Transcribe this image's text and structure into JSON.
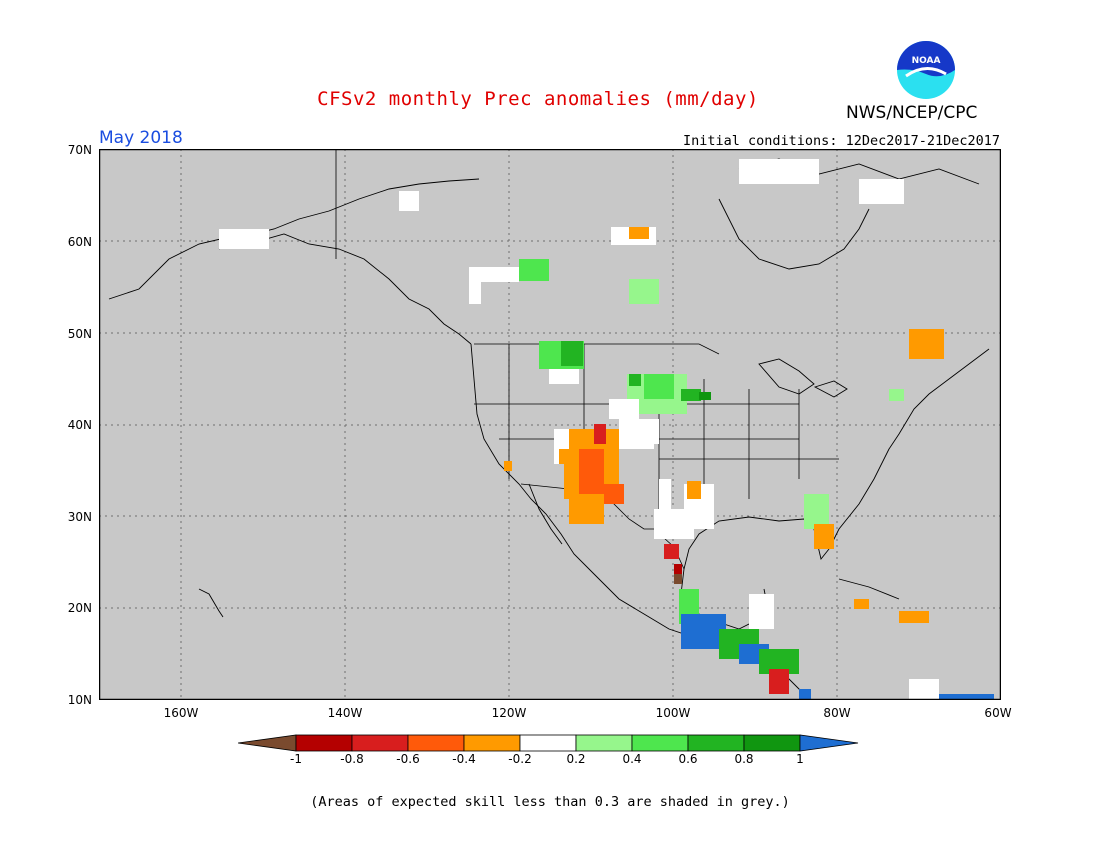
{
  "title": "CFSv2 monthly Prec anomalies (mm/day)",
  "agency": "NWS/NCEP/CPC",
  "logo_text": "NOAA",
  "target_month": "May 2018",
  "initial_conditions": "Initial conditions: 12Dec2017-21Dec2017",
  "footnote": "(Areas of expected skill less than 0.3 are shaded in grey.)",
  "map": {
    "lat_labels": [
      "70N",
      "60N",
      "50N",
      "40N",
      "30N",
      "20N",
      "10N"
    ],
    "lon_labels": [
      "160W",
      "140W",
      "120W",
      "100W",
      "80W",
      "60W"
    ],
    "lat_range": [
      10,
      70
    ],
    "lon_range": [
      -170,
      -60
    ],
    "background_color": "#c8c8c8"
  },
  "legend": {
    "labels": [
      "-1",
      "-0.8",
      "-0.6",
      "-0.4",
      "-0.2",
      "0.2",
      "0.4",
      "0.6",
      "0.8",
      "1"
    ],
    "colors": [
      "#7a4a2e",
      "#b40000",
      "#d81e1e",
      "#ff5a0a",
      "#ff9a00",
      "#ffffff",
      "#96f68c",
      "#4ee64e",
      "#22b422",
      "#109610",
      "#1e6ed2"
    ]
  }
}
